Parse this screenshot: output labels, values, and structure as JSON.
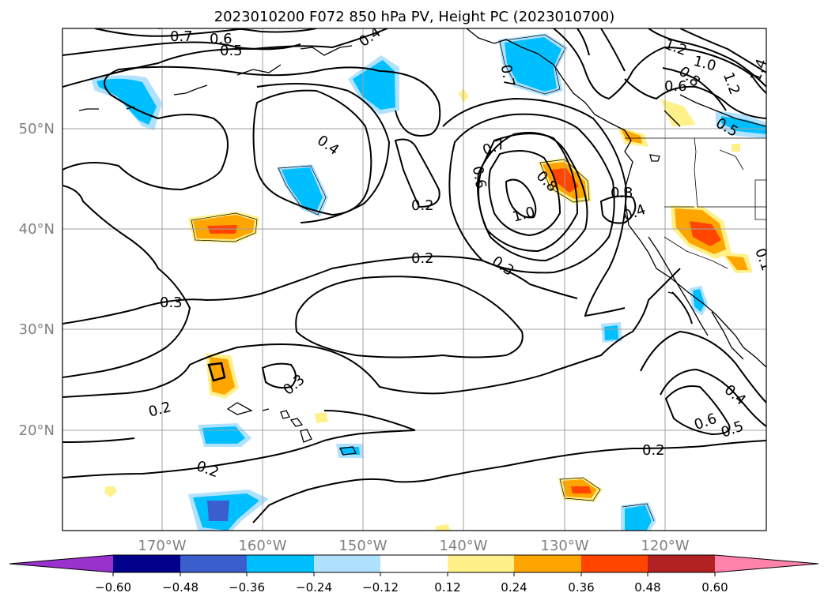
{
  "title": "2023010200 F072 850 hPa PV, Height PC (2023010700)",
  "colors": {
    "label_gray": "#808080"
  },
  "lat_labels": [
    "50°N",
    "40°N",
    "30°N",
    "20°N"
  ],
  "lon_labels": [
    "170°W",
    "160°W",
    "150°W",
    "140°W",
    "130°W",
    "120°W"
  ],
  "contour_labels": [
    "0.7",
    "0.6",
    "0.5",
    "0.4",
    "0.4",
    "0.2",
    "0.2",
    "0.3",
    "0.3",
    "0.2",
    "0.2",
    "0.7",
    "0.6",
    "0.8",
    "1.0",
    "0.3",
    "1.2",
    "1.0",
    "0.8",
    "0.6",
    "1.2",
    "1.4",
    "0.5",
    "0.4",
    "0.4",
    "0.6",
    "0.5",
    "0.2",
    "0.3",
    "0.7",
    "0.1"
  ],
  "colorbar": {
    "colors": [
      "#9932cc",
      "#00008b",
      "#3a5fcd",
      "#00bfff",
      "#b0e2ff",
      "#ffffff",
      "#fff08a",
      "#ffa500",
      "#ff4500",
      "#b22222",
      "#ff83aa"
    ],
    "ticks": [
      "−0.60",
      "−0.48",
      "−0.36",
      "−0.24",
      "−0.12",
      "0.12",
      "0.24",
      "0.36",
      "0.48",
      "0.60"
    ]
  }
}
